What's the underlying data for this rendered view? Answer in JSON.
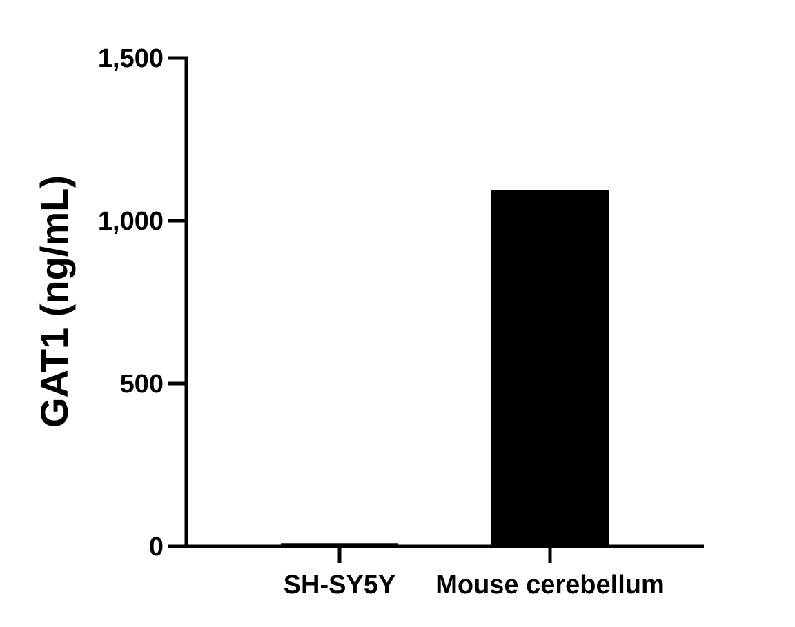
{
  "chart_data": {
    "type": "bar",
    "title": "",
    "xlabel": "",
    "ylabel": "GAT1 (ng/mL)",
    "categories": [
      "SH-SY5Y",
      "Mouse cerebellum"
    ],
    "values": [
      10,
      1095
    ],
    "ylim": [
      0,
      1500
    ],
    "yticks": [
      0,
      500,
      1000,
      1500
    ],
    "ytick_labels": [
      "0",
      "500",
      "1,000",
      "1,500"
    ],
    "bar_color": "#000000",
    "grid": false,
    "legend": "none"
  }
}
